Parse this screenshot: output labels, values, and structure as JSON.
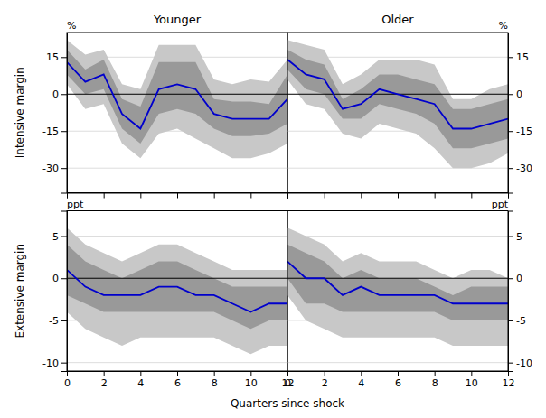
{
  "chart_data": [
    {
      "type": "line",
      "title": "Younger",
      "ylabel": "Intensive margin",
      "annotations": [
        "%"
      ],
      "x": [
        0,
        1,
        2,
        3,
        4,
        5,
        6,
        7,
        8,
        9,
        10,
        11,
        12
      ],
      "xlim": [
        0,
        12
      ],
      "xticks": [
        0,
        2,
        4,
        6,
        8,
        10,
        12
      ],
      "ylim": [
        -40,
        25
      ],
      "yticks": [
        -30,
        -15,
        0,
        15
      ],
      "grid": true,
      "tick_labels": "y",
      "series": [
        {
          "color": "#0000cc",
          "values": [
            13,
            5,
            8,
            -8,
            -14,
            2,
            4,
            2,
            -8,
            -10,
            -10,
            -10,
            -2
          ],
          "bands": [
            {
              "color": "#c8c8c8",
              "lower": [
                4,
                -6,
                -4,
                -20,
                -26,
                -16,
                -14,
                -18,
                -22,
                -26,
                -26,
                -24,
                -20
              ],
              "upper": [
                22,
                16,
                18,
                4,
                2,
                20,
                20,
                20,
                6,
                4,
                6,
                5,
                14
              ]
            },
            {
              "color": "#999999",
              "lower": [
                8,
                0,
                2,
                -14,
                -20,
                -8,
                -6,
                -8,
                -14,
                -17,
                -17,
                -16,
                -12
              ],
              "upper": [
                18,
                10,
                14,
                -2,
                -5,
                13,
                13,
                13,
                -2,
                -3,
                -3,
                -4,
                8
              ]
            }
          ]
        }
      ]
    },
    {
      "type": "line",
      "title": "Older",
      "annotations": [
        "%"
      ],
      "x": [
        0,
        1,
        2,
        3,
        4,
        5,
        6,
        7,
        8,
        9,
        10,
        11,
        12
      ],
      "xlim": [
        0,
        12
      ],
      "xticks": [
        0,
        2,
        4,
        6,
        8,
        10,
        12
      ],
      "ylim": [
        -40,
        25
      ],
      "yticks": [
        -30,
        -15,
        0,
        15
      ],
      "grid": true,
      "tick_labels": "y",
      "series": [
        {
          "color": "#0000cc",
          "values": [
            14,
            8,
            6,
            -6,
            -4,
            2,
            0,
            -2,
            -4,
            -14,
            -14,
            -12,
            -10
          ],
          "bands": [
            {
              "color": "#c8c8c8",
              "lower": [
                6,
                -4,
                -6,
                -16,
                -18,
                -12,
                -14,
                -16,
                -22,
                -30,
                -30,
                -28,
                -24
              ],
              "upper": [
                22,
                20,
                18,
                4,
                8,
                14,
                14,
                14,
                12,
                -2,
                -2,
                2,
                4
              ]
            },
            {
              "color": "#999999",
              "lower": [
                10,
                2,
                0,
                -10,
                -10,
                -4,
                -6,
                -8,
                -12,
                -22,
                -22,
                -20,
                -18
              ],
              "upper": [
                18,
                14,
                12,
                -2,
                2,
                8,
                8,
                6,
                4,
                -6,
                -6,
                -4,
                -2
              ]
            }
          ]
        }
      ]
    },
    {
      "type": "line",
      "ylabel": "Extensive margin",
      "xlabel": "Quarters since shock",
      "annotations": [
        "ppt"
      ],
      "x": [
        0,
        1,
        2,
        3,
        4,
        5,
        6,
        7,
        8,
        9,
        10,
        11,
        12
      ],
      "xlim": [
        0,
        12
      ],
      "xticks": [
        0,
        2,
        4,
        6,
        8,
        10,
        12
      ],
      "ylim": [
        -11,
        8
      ],
      "yticks": [
        -10,
        -5,
        0,
        5
      ],
      "grid": true,
      "series": [
        {
          "color": "#0000cc",
          "values": [
            1,
            -1,
            -2,
            -2,
            -2,
            -1,
            -1,
            -2,
            -2,
            -3,
            -4,
            -3,
            -3
          ],
          "bands": [
            {
              "color": "#c8c8c8",
              "lower": [
                -4,
                -6,
                -7,
                -8,
                -7,
                -7,
                -7,
                -7,
                -7,
                -8,
                -9,
                -8,
                -8
              ],
              "upper": [
                6,
                4,
                3,
                2,
                3,
                4,
                4,
                3,
                2,
                1,
                1,
                1,
                1
              ]
            },
            {
              "color": "#999999",
              "lower": [
                -2,
                -3,
                -4,
                -4,
                -4,
                -4,
                -4,
                -4,
                -4,
                -5,
                -6,
                -5,
                -5
              ],
              "upper": [
                4,
                2,
                1,
                0,
                1,
                2,
                2,
                1,
                0,
                -1,
                -1,
                -1,
                -1
              ]
            }
          ]
        }
      ]
    },
    {
      "type": "line",
      "annotations": [
        "ppt"
      ],
      "x": [
        0,
        1,
        2,
        3,
        4,
        5,
        6,
        7,
        8,
        9,
        10,
        11,
        12
      ],
      "xlim": [
        0,
        12
      ],
      "xticks": [
        0,
        2,
        4,
        6,
        8,
        10,
        12
      ],
      "ylim": [
        -11,
        8
      ],
      "yticks": [
        -10,
        -5,
        0,
        5
      ],
      "grid": true,
      "series": [
        {
          "color": "#0000cc",
          "values": [
            2,
            0,
            0,
            -2,
            -1,
            -2,
            -2,
            -2,
            -2,
            -3,
            -3,
            -3,
            -3
          ],
          "bands": [
            {
              "color": "#c8c8c8",
              "lower": [
                -2,
                -5,
                -6,
                -7,
                -7,
                -7,
                -7,
                -7,
                -7,
                -8,
                -8,
                -8,
                -8
              ],
              "upper": [
                6,
                5,
                4,
                2,
                3,
                2,
                2,
                2,
                1,
                0,
                1,
                1,
                0
              ]
            },
            {
              "color": "#999999",
              "lower": [
                0,
                -3,
                -3,
                -4,
                -4,
                -4,
                -4,
                -4,
                -4,
                -5,
                -5,
                -5,
                -5
              ],
              "upper": [
                4,
                3,
                2,
                0,
                1,
                0,
                0,
                0,
                -1,
                -2,
                -1,
                -1,
                -1
              ]
            }
          ]
        }
      ]
    }
  ]
}
